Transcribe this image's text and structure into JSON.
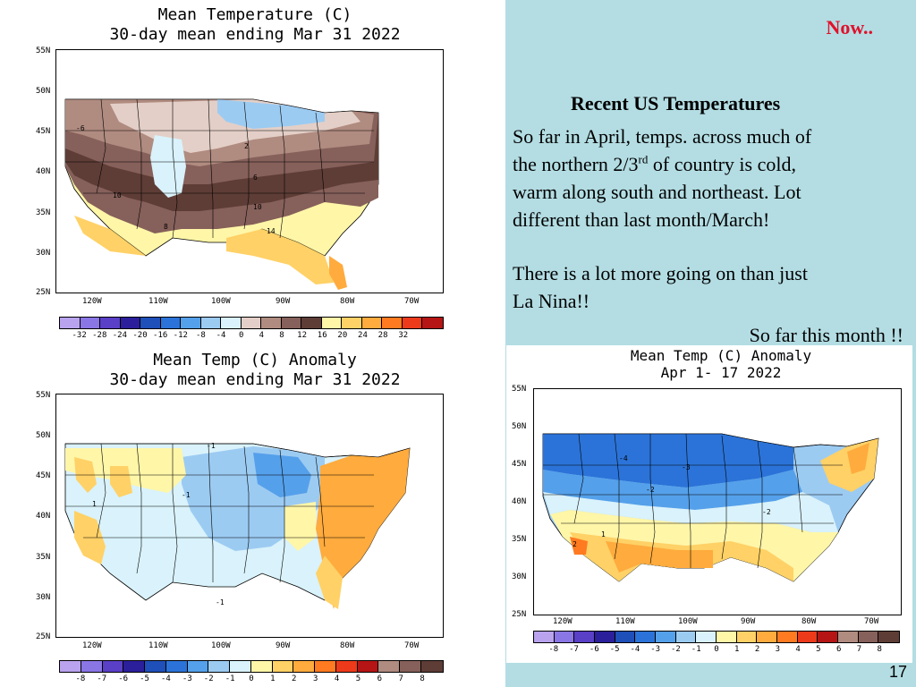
{
  "slide": {
    "now_label": "Now..",
    "title": "Recent US Temperatures",
    "body_line1": "So far in April, temps. across much of",
    "body_line2_a": "the northern 2/3",
    "body_line2_sup": "rd",
    "body_line2_b": " of country is cold,",
    "body_line3": "warm along south and northeast. Lot",
    "body_line4": "different than last month/March!",
    "body_line5": "There is a lot more going on than just",
    "body_line6": "La Nina!!",
    "subtitle": "So far this month !!",
    "page_number": "17"
  },
  "maps": {
    "mean_temp": {
      "title_line1": "Mean Temperature (C)",
      "title_line2": "30-day mean ending Mar 31 2022",
      "latitudes": [
        "55N",
        "50N",
        "45N",
        "40N",
        "35N",
        "30N",
        "25N"
      ],
      "longitudes": [
        "120W",
        "110W",
        "100W",
        "90W",
        "80W",
        "70W"
      ],
      "legend_ticks": [
        "-32",
        "-28",
        "-24",
        "-20",
        "-16",
        "-12",
        "-8",
        "-4",
        "0",
        "4",
        "8",
        "12",
        "16",
        "20",
        "24",
        "28",
        "32"
      ],
      "legend_colors": [
        "#b9a3ee",
        "#8b76e6",
        "#5a3fc7",
        "#2b1f9b",
        "#1f4fb8",
        "#2b73d8",
        "#55a0ea",
        "#9ccbf2",
        "#d9f2fb",
        "#e3cfc7",
        "#b08b80",
        "#86605a",
        "#5e3d36",
        "#fff6a8",
        "#ffd166",
        "#ffab3d",
        "#ff7a20",
        "#ec3a1a",
        "#b51515"
      ]
    },
    "mean_temp_anomaly": {
      "title_line1": "Mean Temp (C) Anomaly",
      "title_line2": "30-day mean ending Mar 31 2022",
      "latitudes": [
        "55N",
        "50N",
        "45N",
        "40N",
        "35N",
        "30N",
        "25N"
      ],
      "longitudes": [
        "120W",
        "110W",
        "100W",
        "90W",
        "80W",
        "70W"
      ],
      "legend_ticks": [
        "-8",
        "-7",
        "-6",
        "-5",
        "-4",
        "-3",
        "-2",
        "-1",
        "0",
        "1",
        "2",
        "3",
        "4",
        "5",
        "6",
        "7",
        "8"
      ],
      "legend_colors": [
        "#b9a3ee",
        "#8b76e6",
        "#5a3fc7",
        "#2b1f9b",
        "#1f4fb8",
        "#2b73d8",
        "#55a0ea",
        "#9ccbf2",
        "#d9f2fb",
        "#fff6a8",
        "#ffd166",
        "#ffab3d",
        "#ff7a20",
        "#ec3a1a",
        "#b51515",
        "#b08b80",
        "#86605a",
        "#5e3d36"
      ]
    },
    "april_anomaly": {
      "title_line1": "Mean Temp (C) Anomaly",
      "title_line2": "Apr 1- 17 2022",
      "latitudes": [
        "55N",
        "50N",
        "45N",
        "40N",
        "35N",
        "30N",
        "25N"
      ],
      "longitudes": [
        "120W",
        "110W",
        "100W",
        "90W",
        "80W",
        "70W"
      ],
      "legend_ticks": [
        "-8",
        "-7",
        "-6",
        "-5",
        "-4",
        "-3",
        "-2",
        "-1",
        "0",
        "1",
        "2",
        "3",
        "4",
        "5",
        "6",
        "7",
        "8"
      ],
      "legend_colors": [
        "#b9a3ee",
        "#8b76e6",
        "#5a3fc7",
        "#2b1f9b",
        "#1f4fb8",
        "#2b73d8",
        "#55a0ea",
        "#9ccbf2",
        "#d9f2fb",
        "#fff6a8",
        "#ffd166",
        "#ffab3d",
        "#ff7a20",
        "#ec3a1a",
        "#b51515",
        "#b08b80",
        "#86605a",
        "#5e3d36"
      ]
    }
  }
}
